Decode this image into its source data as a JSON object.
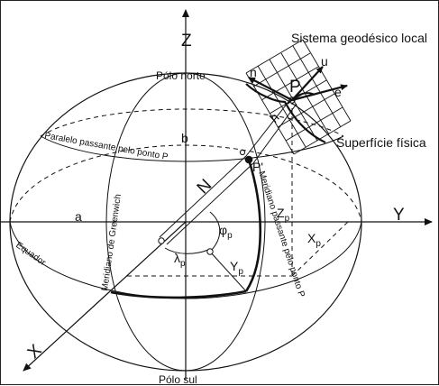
{
  "diagram": {
    "axes": {
      "z": "Z",
      "y": "Y",
      "x": "X"
    },
    "labels": {
      "local_system": "Sistema geodésico local",
      "physical_surface": "Superfície física",
      "north_pole": "Pólo norte",
      "south_pole": "Pólo sul",
      "parallel": "Paralelo passante pelo ponto P",
      "equator": "Equador",
      "greenwich": "Meridiano de Greenwich",
      "meridian_p": "Meridiano passante pelo ponto P",
      "semi_major": "a",
      "semi_minor": "b",
      "normal": "N",
      "height": "h",
      "point": "P",
      "point_proj": "P'",
      "local_n": "n",
      "local_u": "u",
      "local_e": "e",
      "phi": "φ",
      "lambda": "λ",
      "zp": "Z",
      "xp": "X",
      "yp": "Y",
      "sub_p": "p",
      "sub_p_upper": "P"
    },
    "colors": {
      "stroke": "#111111",
      "background": "#ffffff"
    }
  }
}
